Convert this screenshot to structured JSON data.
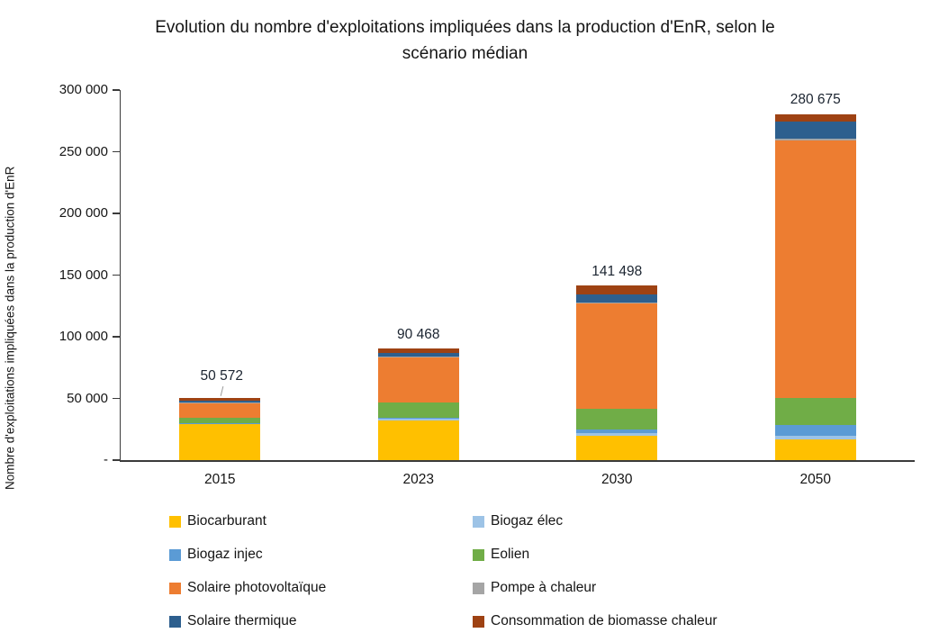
{
  "title_lines": [
    "Evolution du nombre d'exploitations impliquées dans la production d'EnR, selon le",
    "scénario médian"
  ],
  "chart_data": {
    "type": "bar",
    "stacked": true,
    "title": "Evolution du nombre d'exploitations impliquées dans la production d'EnR, selon le scénario médian",
    "ylabel": "Nombre d'exploitations impliquées dans la production d'EnR",
    "xlabel": "",
    "categories": [
      "2015",
      "2023",
      "2030",
      "2050"
    ],
    "ylim": [
      0,
      300000
    ],
    "grid": false,
    "legend_position": "bottom",
    "y_ticks": [
      {
        "value": 0,
        "label": "-"
      },
      {
        "value": 50000,
        "label": "50 000"
      },
      {
        "value": 100000,
        "label": "100 000"
      },
      {
        "value": 150000,
        "label": "150 000"
      },
      {
        "value": 200000,
        "label": "200 000"
      },
      {
        "value": 250000,
        "label": "250 000"
      },
      {
        "value": 300000,
        "label": "300 000"
      }
    ],
    "series": [
      {
        "name": "Biocarburant",
        "color": "#FFC000",
        "values": [
          29900,
          32000,
          19500,
          16500
        ]
      },
      {
        "name": "Biogaz élec",
        "color": "#9DC3E6",
        "values": [
          300,
          1700,
          2700,
          3000
        ]
      },
      {
        "name": "Biogaz injec",
        "color": "#5B9BD5",
        "values": [
          100,
          500,
          2800,
          8800
        ]
      },
      {
        "name": "Eolien",
        "color": "#70AD47",
        "values": [
          4100,
          12200,
          16800,
          22300
        ]
      },
      {
        "name": "Solaire photovoltaïque",
        "color": "#ED7D31",
        "values": [
          12000,
          36500,
          85500,
          208500
        ]
      },
      {
        "name": "Pompe à chaleur",
        "color": "#A5A5A5",
        "values": [
          600,
          700,
          800,
          1200
        ]
      },
      {
        "name": "Solaire thermique",
        "color": "#2D5F8E",
        "values": [
          900,
          3200,
          6100,
          14300
        ]
      },
      {
        "name": "Consommation de biomasse chaleur",
        "color": "#9E4213",
        "values": [
          2672,
          3668,
          7298,
          6075
        ]
      }
    ],
    "totals": [
      50572,
      90468,
      141498,
      280675
    ],
    "total_labels": [
      {
        "text": "50 572",
        "leader": true
      },
      {
        "text": "90 468",
        "leader": false
      },
      {
        "text": "141 498",
        "leader": false
      },
      {
        "text": "280 675",
        "leader": false
      }
    ]
  }
}
